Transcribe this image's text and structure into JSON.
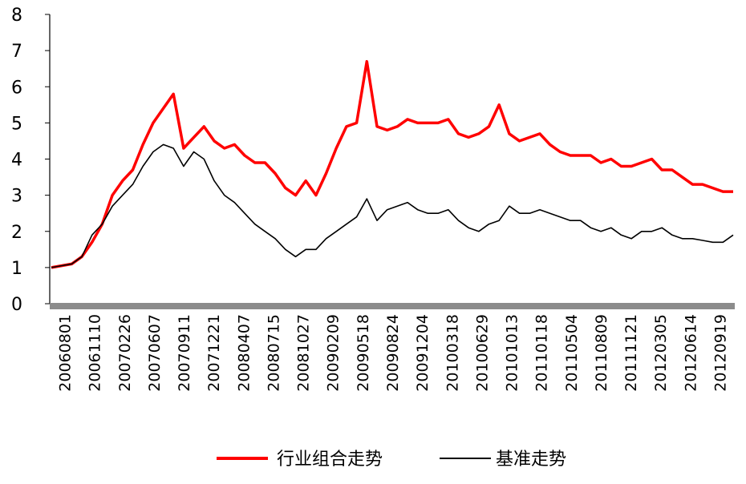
{
  "chart_data": {
    "type": "line",
    "title": "",
    "xlabel": "",
    "ylabel": "",
    "ylim": [
      0,
      8
    ],
    "yticks": [
      "0",
      "1",
      "2",
      "3",
      "4",
      "5",
      "6",
      "7",
      "8"
    ],
    "x_tick_labels": [
      "20060801",
      "20061110",
      "20070226",
      "20070607",
      "20070911",
      "20071221",
      "20080407",
      "20080715",
      "20081027",
      "20090209",
      "20090518",
      "20090824",
      "20091204",
      "20100318",
      "20100629",
      "20101013",
      "20110118",
      "20110504",
      "20110809",
      "20111121",
      "20120305",
      "20120614",
      "20120919"
    ],
    "grid": false,
    "legend_position": "bottom",
    "x": [
      "20060801",
      "20060915",
      "20061110",
      "20061220",
      "20070226",
      "20070410",
      "20070530",
      "20070607",
      "20070705",
      "20070801",
      "20070830",
      "20070911",
      "20071017",
      "20071101",
      "20071130",
      "20071221",
      "20080131",
      "20080305",
      "20080407",
      "20080530",
      "20080620",
      "20080715",
      "20080901",
      "20080920",
      "20081027",
      "20081120",
      "20081231",
      "20090209",
      "20090320",
      "20090518",
      "20090624",
      "20090801",
      "20090824",
      "20090910",
      "20091030",
      "20091204",
      "20100111",
      "20100210",
      "20100318",
      "20100430",
      "20100525",
      "20100629",
      "20100801",
      "20100915",
      "20101013",
      "20101115",
      "20101210",
      "20110118",
      "20110221",
      "20110405",
      "20110504",
      "20110620",
      "20110701",
      "20110809",
      "20110920",
      "20111020",
      "20111121",
      "20120104",
      "20120205",
      "20120305",
      "20120425",
      "20120524",
      "20120614",
      "20120720",
      "20120820",
      "20120919",
      "20121115",
      "20121228"
    ],
    "series": [
      {
        "name": "行业组合走势",
        "color": "#ff0000",
        "values": [
          1.0,
          1.05,
          1.1,
          1.3,
          1.7,
          2.2,
          3.0,
          3.4,
          3.7,
          4.4,
          5.0,
          5.4,
          5.8,
          4.3,
          4.6,
          4.9,
          4.5,
          4.3,
          4.4,
          4.1,
          3.9,
          3.9,
          3.6,
          3.2,
          3.0,
          3.4,
          3.0,
          3.6,
          4.3,
          4.9,
          5.0,
          6.7,
          4.9,
          4.8,
          4.9,
          5.1,
          5.0,
          5.0,
          5.0,
          5.1,
          4.7,
          4.6,
          4.7,
          4.9,
          5.5,
          4.7,
          4.5,
          4.6,
          4.7,
          4.4,
          4.2,
          4.1,
          4.1,
          4.1,
          3.9,
          4.0,
          3.8,
          3.8,
          3.9,
          4.0,
          3.7,
          3.7,
          3.5,
          3.3,
          3.3,
          3.2,
          3.1,
          3.1
        ]
      },
      {
        "name": "基准走势",
        "color": "#000000",
        "values": [
          1.0,
          1.05,
          1.1,
          1.3,
          1.9,
          2.2,
          2.7,
          3.0,
          3.3,
          3.8,
          4.2,
          4.4,
          4.3,
          3.8,
          4.2,
          4.0,
          3.4,
          3.0,
          2.8,
          2.5,
          2.2,
          2.0,
          1.8,
          1.5,
          1.3,
          1.5,
          1.5,
          1.8,
          2.0,
          2.2,
          2.4,
          2.9,
          2.3,
          2.6,
          2.7,
          2.8,
          2.6,
          2.5,
          2.5,
          2.6,
          2.3,
          2.1,
          2.0,
          2.2,
          2.3,
          2.7,
          2.5,
          2.5,
          2.6,
          2.5,
          2.4,
          2.3,
          2.3,
          2.1,
          2.0,
          2.1,
          1.9,
          1.8,
          2.0,
          2.0,
          2.1,
          1.9,
          1.8,
          1.8,
          1.75,
          1.7,
          1.7,
          1.9
        ]
      }
    ]
  }
}
